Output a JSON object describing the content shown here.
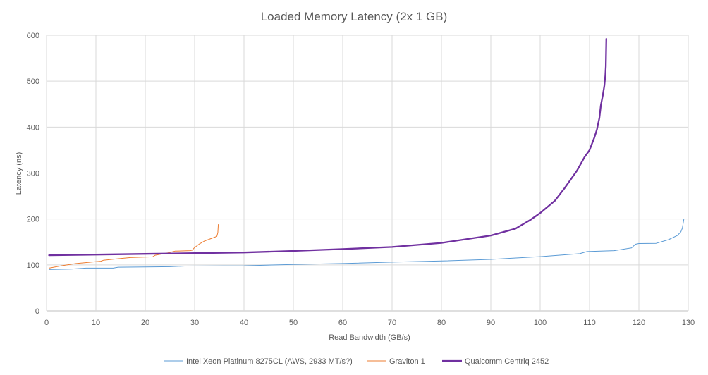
{
  "chart_data": {
    "type": "line",
    "title": "Loaded Memory Latency (2x 1 GB)",
    "xlabel": "Read Bandwidth (GB/s)",
    "ylabel": "Latency (ns)",
    "xlim": [
      0,
      130
    ],
    "ylim": [
      0,
      600
    ],
    "xticks": [
      0,
      10,
      20,
      30,
      40,
      50,
      60,
      70,
      80,
      90,
      100,
      110,
      120,
      130
    ],
    "yticks": [
      0,
      100,
      200,
      300,
      400,
      500,
      600
    ],
    "grid": true,
    "legend_position": "bottom",
    "series": [
      {
        "name": "Intel Xeon Platinum 8275CL (AWS, 2933 MT/s?)",
        "color": "#5b9bd5",
        "width": 1,
        "points": [
          [
            0.5,
            90
          ],
          [
            5,
            91
          ],
          [
            8,
            93
          ],
          [
            13.5,
            93
          ],
          [
            14.5,
            95
          ],
          [
            20,
            95.5
          ],
          [
            25,
            96
          ],
          [
            28,
            97.5
          ],
          [
            40,
            98
          ],
          [
            50,
            101
          ],
          [
            60,
            103
          ],
          [
            70,
            106
          ],
          [
            80,
            108.5
          ],
          [
            90,
            112
          ],
          [
            100,
            118
          ],
          [
            108,
            124.5
          ],
          [
            109.5,
            129
          ],
          [
            115,
            131
          ],
          [
            118.5,
            137
          ],
          [
            119.3,
            145
          ],
          [
            120,
            146.5
          ],
          [
            123.5,
            147
          ],
          [
            126,
            155
          ],
          [
            127.8,
            164
          ],
          [
            128.5,
            172
          ],
          [
            128.8,
            180
          ],
          [
            129.1,
            199
          ]
        ]
      },
      {
        "name": "Graviton 1",
        "color": "#ed7d31",
        "width": 1,
        "points": [
          [
            0.5,
            93
          ],
          [
            3,
            98
          ],
          [
            6,
            103
          ],
          [
            9,
            106
          ],
          [
            11,
            108
          ],
          [
            11.5,
            110
          ],
          [
            13.5,
            112.5
          ],
          [
            17,
            116
          ],
          [
            21.5,
            117.5
          ],
          [
            22,
            121
          ],
          [
            24.5,
            126
          ],
          [
            26,
            130
          ],
          [
            29,
            131
          ],
          [
            29.5,
            132
          ],
          [
            30,
            138
          ],
          [
            31,
            146
          ],
          [
            32,
            152
          ],
          [
            33.5,
            158
          ],
          [
            34.5,
            162
          ],
          [
            34.7,
            170
          ],
          [
            34.8,
            188
          ]
        ]
      },
      {
        "name": "Qualcomm Centriq 2452",
        "color": "#7030a0",
        "width": 2.3,
        "points": [
          [
            0.5,
            121
          ],
          [
            10,
            122.5
          ],
          [
            20,
            124
          ],
          [
            30,
            125.5
          ],
          [
            40,
            127
          ],
          [
            50,
            130.5
          ],
          [
            60,
            134.5
          ],
          [
            70,
            139
          ],
          [
            80,
            148
          ],
          [
            90,
            164
          ],
          [
            95,
            179
          ],
          [
            98,
            198
          ],
          [
            100,
            213
          ],
          [
            103,
            240
          ],
          [
            105,
            268
          ],
          [
            107.5,
            306
          ],
          [
            109,
            335
          ],
          [
            110,
            350
          ],
          [
            111,
            378
          ],
          [
            111.5,
            395
          ],
          [
            112,
            420
          ],
          [
            112.3,
            448
          ],
          [
            112.7,
            470
          ],
          [
            113,
            490
          ],
          [
            113.2,
            512
          ],
          [
            113.3,
            532
          ],
          [
            113.4,
            592
          ]
        ]
      }
    ]
  }
}
